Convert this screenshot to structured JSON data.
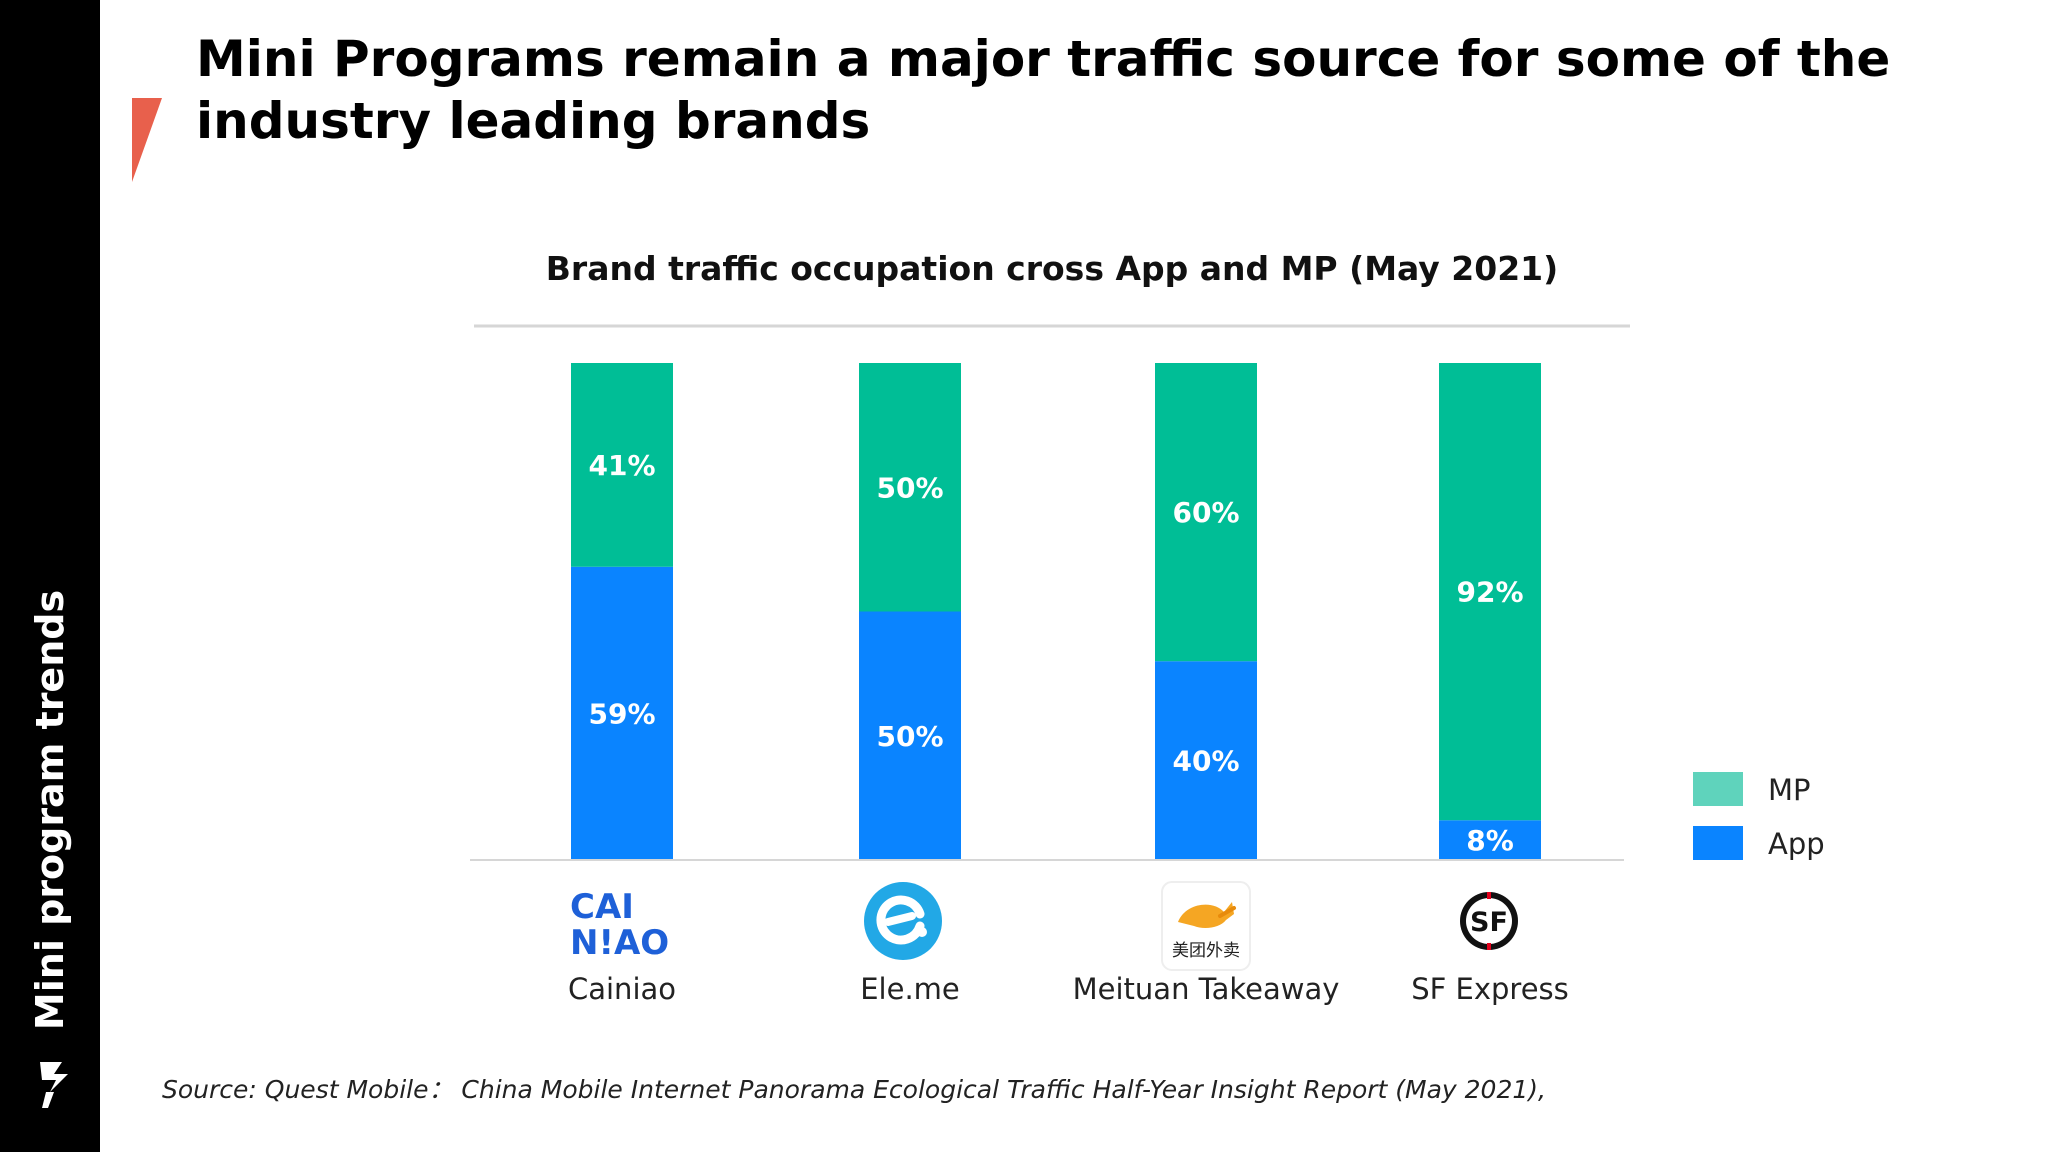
{
  "sidebar": {
    "label": "Mini program trends"
  },
  "title": "Mini Programs remain a major traffic source for some of the industry leading brands",
  "source": "Source: Quest Mobile：  China Mobile Internet Panorama Ecological Traffic Half-Year Insight Report (May 2021),",
  "colors": {
    "mp": "#00BE96",
    "app": "#0A84FF",
    "legend_mp": "#5FD3BC",
    "accent": "#E8604C"
  },
  "brands": {
    "cainiao": {
      "logo_text_top": "CAI",
      "logo_text_bottom": "N!AO",
      "icon": "cainiao-logo"
    },
    "eleme": {
      "icon": "eleme-logo"
    },
    "meituan": {
      "logo_text": "美团外卖",
      "icon": "meituan-kangaroo-logo"
    },
    "sf": {
      "logo_text": "SF",
      "icon": "sf-express-logo"
    }
  },
  "chart_data": {
    "type": "bar",
    "stacked": true,
    "title": "Brand traffic occupation cross App and MP (May 2021)",
    "categories": [
      "Cainiao",
      "Ele.me",
      "Meituan Takeaway",
      "SF Express"
    ],
    "series": [
      {
        "name": "App",
        "values": [
          59,
          50,
          40,
          8
        ],
        "labels": [
          "59%",
          "50%",
          "40%",
          "8%"
        ]
      },
      {
        "name": "MP",
        "values": [
          41,
          50,
          60,
          92
        ],
        "labels": [
          "41%",
          "50%",
          "60%",
          "92%"
        ]
      }
    ],
    "ylim": [
      0,
      100
    ],
    "legend": [
      "MP",
      "App"
    ],
    "legend_position": "right",
    "grid": false
  }
}
